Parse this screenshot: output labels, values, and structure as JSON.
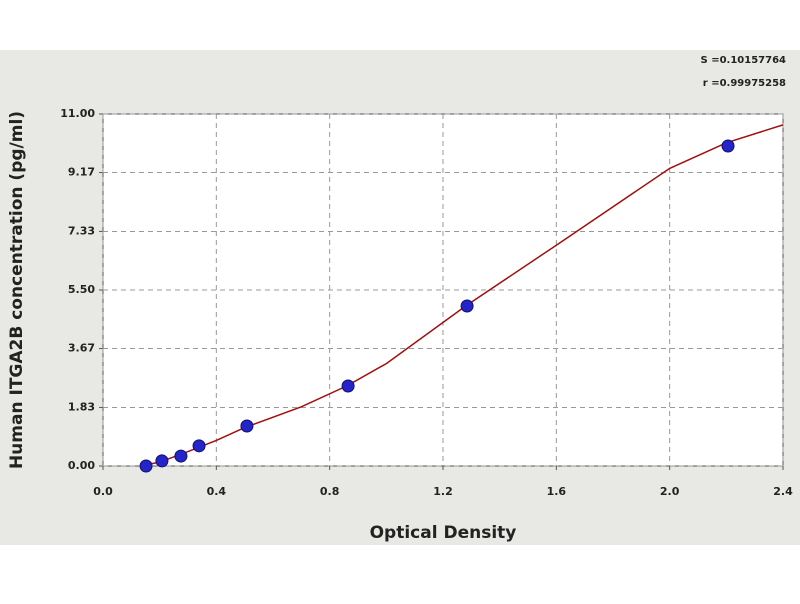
{
  "chart_data": {
    "type": "scatter",
    "annotations": [
      "S =0.10157764",
      "r =0.99975258"
    ],
    "xlabel": "Optical Density",
    "ylabel": "Human ITGA2B concentration (pg/ml)",
    "x": [
      0.152,
      0.208,
      0.275,
      0.339,
      0.508,
      0.865,
      1.285,
      2.206
    ],
    "values": [
      0,
      0.16,
      0.31,
      0.63,
      1.25,
      2.5,
      5,
      10
    ],
    "color": "#2424c8",
    "curve": {
      "x": [
        0.13,
        0.2,
        0.3,
        0.4,
        0.5,
        0.7,
        0.86,
        1.0,
        1.28,
        1.6,
        2.0,
        2.2,
        2.4
      ],
      "values": [
        0,
        0.12,
        0.45,
        0.8,
        1.2,
        1.85,
        2.5,
        3.2,
        5.0,
        6.9,
        9.3,
        10.1,
        10.66
      ],
      "color": "#a01010"
    },
    "xlim": [
      0,
      2.4
    ],
    "ylim": [
      0,
      11
    ],
    "xticks": [
      {
        "value": 0,
        "label": "0.0"
      },
      0.4,
      0.8,
      1.2,
      1.6,
      {
        "value": 2,
        "label": "2.0"
      },
      2.4
    ],
    "yticks": [
      {
        "value": 0,
        "label": "0.00"
      },
      1.83,
      3.67,
      {
        "value": 5.5,
        "label": "5.50"
      },
      7.33,
      9.17,
      {
        "value": 11,
        "label": "11.00"
      }
    ],
    "grid": true
  }
}
